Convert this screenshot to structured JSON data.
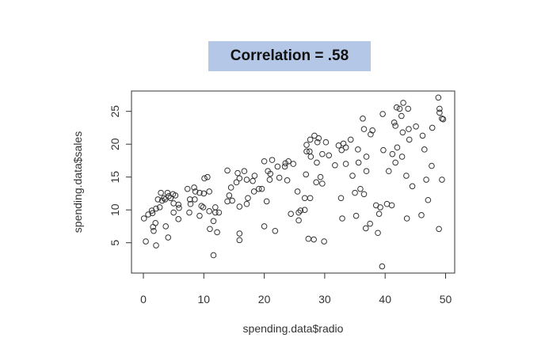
{
  "chart_data": {
    "type": "scatter",
    "title": "Correlation = .58",
    "xlabel": "spending.data$radio",
    "ylabel": "spending.data$sales",
    "xlim": [
      -2,
      51
    ],
    "ylim": [
      0.5,
      28.2
    ],
    "xticks": [
      "0",
      "10",
      "20",
      "30",
      "40",
      "50"
    ],
    "yticks": [
      "5",
      "10",
      "15",
      "20",
      "25"
    ],
    "grid": false,
    "marker": "open-circle",
    "points": [
      [
        0.1,
        8.7
      ],
      [
        0.4,
        5.2
      ],
      [
        0.8,
        9.3
      ],
      [
        1.4,
        9.9
      ],
      [
        1.5,
        9.5
      ],
      [
        1.6,
        7.4
      ],
      [
        1.7,
        6.8
      ],
      [
        2.0,
        8.0
      ],
      [
        2.1,
        4.6
      ],
      [
        2.1,
        10.2
      ],
      [
        2.4,
        11.6
      ],
      [
        2.7,
        10.4
      ],
      [
        2.9,
        12.6
      ],
      [
        3.1,
        11.4
      ],
      [
        3.4,
        11.8
      ],
      [
        3.6,
        11.6
      ],
      [
        3.7,
        7.5
      ],
      [
        4.0,
        12.6
      ],
      [
        4.1,
        5.8
      ],
      [
        4.2,
        12.1
      ],
      [
        4.5,
        11.8
      ],
      [
        4.9,
        12.4
      ],
      [
        5.0,
        11.0
      ],
      [
        5.0,
        9.6
      ],
      [
        5.3,
        12.2
      ],
      [
        5.8,
        10.8
      ],
      [
        5.9,
        10.3
      ],
      [
        5.8,
        8.6
      ],
      [
        7.3,
        13.2
      ],
      [
        7.6,
        9.6
      ],
      [
        7.7,
        11.6
      ],
      [
        7.8,
        10.9
      ],
      [
        8.4,
        13.4
      ],
      [
        8.5,
        11.6
      ],
      [
        8.6,
        12.8
      ],
      [
        9.3,
        9.1
      ],
      [
        9.3,
        12.6
      ],
      [
        9.6,
        10.6
      ],
      [
        9.9,
        10.4
      ],
      [
        10.0,
        12.5
      ],
      [
        10.1,
        14.8
      ],
      [
        10.6,
        15.0
      ],
      [
        10.9,
        12.8
      ],
      [
        10.9,
        9.8
      ],
      [
        11.0,
        7.1
      ],
      [
        11.6,
        8.3
      ],
      [
        11.6,
        3.1
      ],
      [
        11.9,
        10.4
      ],
      [
        11.9,
        9.6
      ],
      [
        12.2,
        6.6
      ],
      [
        12.5,
        9.6
      ],
      [
        13.9,
        11.3
      ],
      [
        13.9,
        16.0
      ],
      [
        14.2,
        12.2
      ],
      [
        14.5,
        13.4
      ],
      [
        14.7,
        11.4
      ],
      [
        15.4,
        14.2
      ],
      [
        15.6,
        15.6
      ],
      [
        15.9,
        6.4
      ],
      [
        15.9,
        5.4
      ],
      [
        15.9,
        10.5
      ],
      [
        15.9,
        14.8
      ],
      [
        16.7,
        15.9
      ],
      [
        17.1,
        10.9
      ],
      [
        17.1,
        14.6
      ],
      [
        17.3,
        11.8
      ],
      [
        18.1,
        14.4
      ],
      [
        18.3,
        12.8
      ],
      [
        18.4,
        15.2
      ],
      [
        19.1,
        13.2
      ],
      [
        19.6,
        13.2
      ],
      [
        20.0,
        17.4
      ],
      [
        20.0,
        7.5
      ],
      [
        20.4,
        11.3
      ],
      [
        20.6,
        15.9
      ],
      [
        20.9,
        14.6
      ],
      [
        21.0,
        15.5
      ],
      [
        21.3,
        17.6
      ],
      [
        21.8,
        6.8
      ],
      [
        22.2,
        16.6
      ],
      [
        22.5,
        14.9
      ],
      [
        23.4,
        16.6
      ],
      [
        23.5,
        17.1
      ],
      [
        23.8,
        14.5
      ],
      [
        24.0,
        17.4
      ],
      [
        24.4,
        9.4
      ],
      [
        24.8,
        17.0
      ],
      [
        25.5,
        12.8
      ],
      [
        25.7,
        8.4
      ],
      [
        25.7,
        9.6
      ],
      [
        26.0,
        9.9
      ],
      [
        26.7,
        11.8
      ],
      [
        26.7,
        10.0
      ],
      [
        26.9,
        15.4
      ],
      [
        27.0,
        19.9
      ],
      [
        27.0,
        18.9
      ],
      [
        27.3,
        5.6
      ],
      [
        27.5,
        18.9
      ],
      [
        27.6,
        20.7
      ],
      [
        27.6,
        11.8
      ],
      [
        27.7,
        18.1
      ],
      [
        28.2,
        5.5
      ],
      [
        28.3,
        21.3
      ],
      [
        28.6,
        14.2
      ],
      [
        28.7,
        17.2
      ],
      [
        28.8,
        20.3
      ],
      [
        29.0,
        20.9
      ],
      [
        29.3,
        15.0
      ],
      [
        29.6,
        18.5
      ],
      [
        29.6,
        14.0
      ],
      [
        29.9,
        5.2
      ],
      [
        30.2,
        20.3
      ],
      [
        30.7,
        18.3
      ],
      [
        31.7,
        16.8
      ],
      [
        32.3,
        19.8
      ],
      [
        32.7,
        11.8
      ],
      [
        32.8,
        19.1
      ],
      [
        32.9,
        8.7
      ],
      [
        33.1,
        20.1
      ],
      [
        33.5,
        19.5
      ],
      [
        33.5,
        17.0
      ],
      [
        34.3,
        20.7
      ],
      [
        34.6,
        15.2
      ],
      [
        35.0,
        12.6
      ],
      [
        35.2,
        9.1
      ],
      [
        35.5,
        19.2
      ],
      [
        35.6,
        17.2
      ],
      [
        35.9,
        13.2
      ],
      [
        36.3,
        23.9
      ],
      [
        36.5,
        22.3
      ],
      [
        36.5,
        12.4
      ],
      [
        36.8,
        7.2
      ],
      [
        36.9,
        18.1
      ],
      [
        36.9,
        15.9
      ],
      [
        37.5,
        7.9
      ],
      [
        37.6,
        21.5
      ],
      [
        37.9,
        22.1
      ],
      [
        38.5,
        10.7
      ],
      [
        38.8,
        6.5
      ],
      [
        39.0,
        9.4
      ],
      [
        39.2,
        10.4
      ],
      [
        39.5,
        1.4
      ],
      [
        39.6,
        24.6
      ],
      [
        39.7,
        19.1
      ],
      [
        40.3,
        10.9
      ],
      [
        40.6,
        15.9
      ],
      [
        41.1,
        10.7
      ],
      [
        41.2,
        18.5
      ],
      [
        41.5,
        23.3
      ],
      [
        41.7,
        22.8
      ],
      [
        41.7,
        17.2
      ],
      [
        41.9,
        25.6
      ],
      [
        42.0,
        19.5
      ],
      [
        42.4,
        25.4
      ],
      [
        42.7,
        24.3
      ],
      [
        42.8,
        18.1
      ],
      [
        42.9,
        21.8
      ],
      [
        43.0,
        26.3
      ],
      [
        43.5,
        15.2
      ],
      [
        43.6,
        8.7
      ],
      [
        43.8,
        25.4
      ],
      [
        43.9,
        22.3
      ],
      [
        44.0,
        20.7
      ],
      [
        44.5,
        13.6
      ],
      [
        45.1,
        22.7
      ],
      [
        46.0,
        9.2
      ],
      [
        46.2,
        21.3
      ],
      [
        46.5,
        19.2
      ],
      [
        46.8,
        14.6
      ],
      [
        47.1,
        11.5
      ],
      [
        47.7,
        16.7
      ],
      [
        47.8,
        22.5
      ],
      [
        48.8,
        27.1
      ],
      [
        48.9,
        7.1
      ],
      [
        49.0,
        25.4
      ],
      [
        49.0,
        24.8
      ],
      [
        49.4,
        23.9
      ],
      [
        49.6,
        23.8
      ],
      [
        49.4,
        14.6
      ]
    ]
  },
  "colors": {
    "title_bg": "#b4c7e7",
    "marker": "#333333"
  }
}
